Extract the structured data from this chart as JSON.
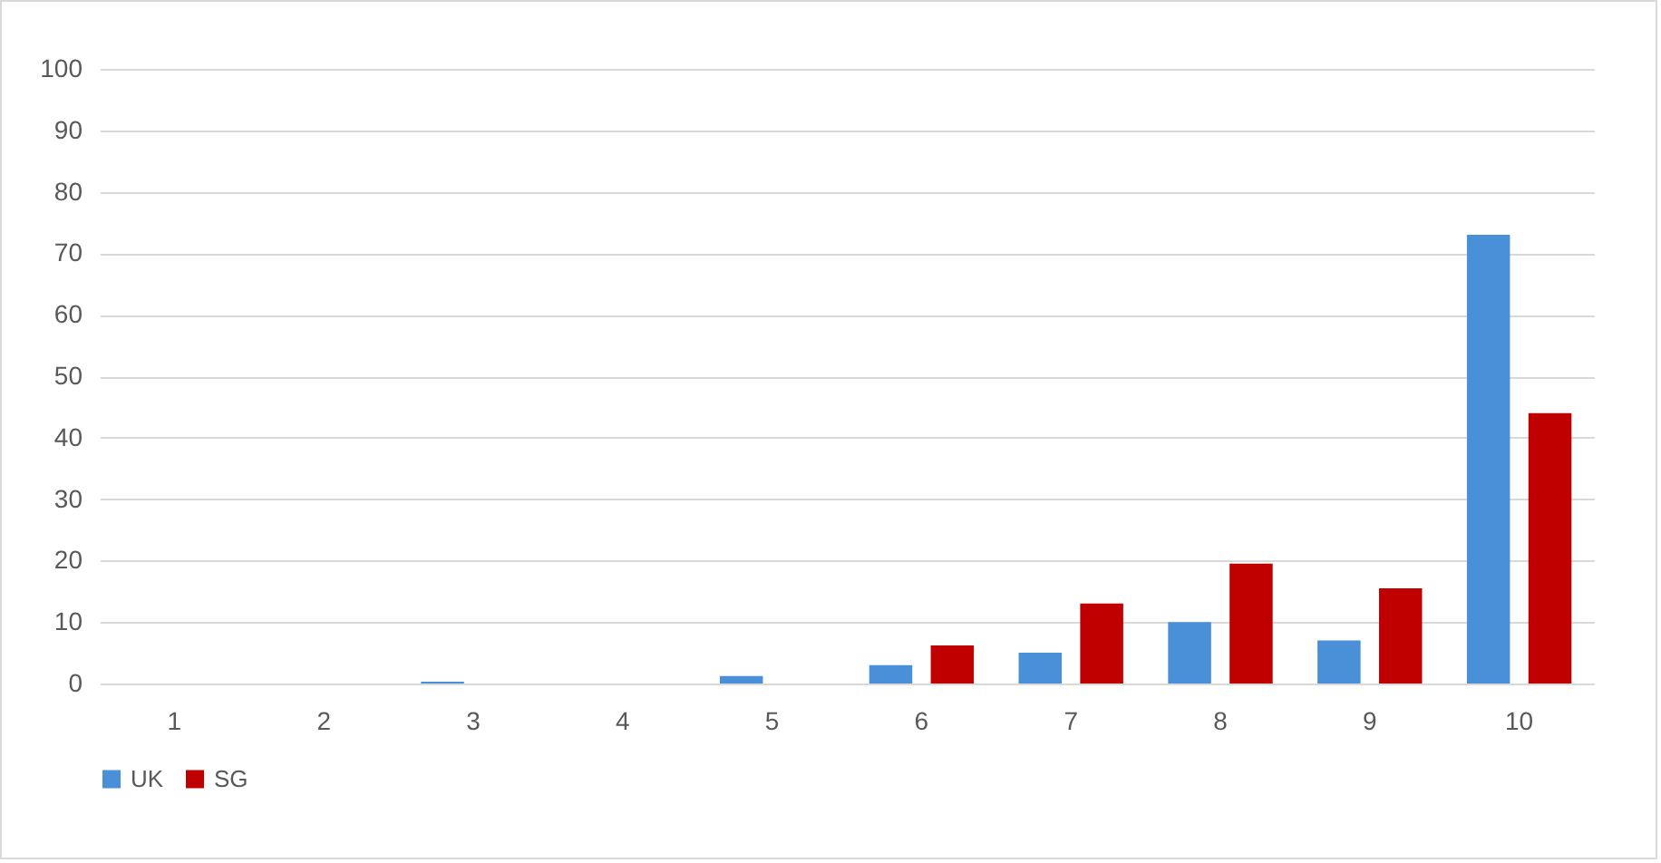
{
  "chart_data": {
    "type": "bar",
    "categories": [
      "1",
      "2",
      "3",
      "4",
      "5",
      "6",
      "7",
      "8",
      "9",
      "10"
    ],
    "series": [
      {
        "name": "UK",
        "color": "#4a90d9",
        "values": [
          0,
          0,
          0.3,
          0,
          1.2,
          3,
          5,
          10,
          7,
          73
        ]
      },
      {
        "name": "SG",
        "color": "#c00000",
        "values": [
          0,
          0,
          0,
          0,
          0,
          6.2,
          13,
          19.5,
          15.5,
          44
        ]
      }
    ],
    "ylim": [
      0,
      100
    ],
    "yticks": [
      0,
      10,
      20,
      30,
      40,
      50,
      60,
      70,
      80,
      90,
      100
    ],
    "grid": "y",
    "legend": "bottom"
  }
}
